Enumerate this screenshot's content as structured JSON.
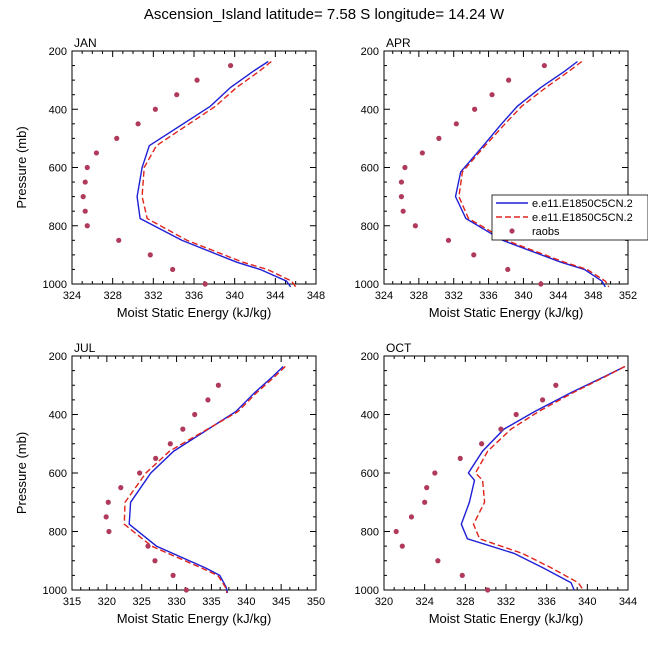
{
  "title": "Ascension_Island  latitude= 7.58 S longitude= 14.24 W",
  "legend": {
    "entries": [
      {
        "label": "e.e11.E1850C5CN.2",
        "color": "#1f1fd6",
        "style": "solid"
      },
      {
        "label": "e.e11.E1850C5CN.2",
        "color": "#e0241b",
        "style": "dashed"
      },
      {
        "label": "raobs",
        "color": "#b03a5b",
        "style": "marker"
      }
    ]
  },
  "chart_data": [
    {
      "type": "line",
      "panel": "JAN",
      "xlabel": "Moist Static Energy (kJ/kg)",
      "ylabel": "Pressure (mb)",
      "xlim": [
        324,
        348
      ],
      "ylim": [
        1000,
        200
      ],
      "xticks": [
        "324",
        "328",
        "332",
        "336",
        "340",
        "344",
        "348"
      ],
      "yticks": [
        "200",
        "400",
        "600",
        "800",
        "1000"
      ],
      "pressure": [
        236,
        270,
        325,
        390,
        525,
        600,
        700,
        775,
        850,
        925,
        950,
        990,
        1010
      ],
      "series": [
        {
          "name": "e.e11.E1850C5CN.2",
          "values": [
            343.3,
            341.8,
            339.6,
            337.6,
            331.6,
            330.9,
            330.4,
            330.7,
            334.8,
            340.2,
            342.5,
            345.1,
            345.5
          ]
        },
        {
          "name": "e.e11.E1850C5CN.2",
          "values": [
            343.6,
            342.4,
            340.2,
            338.1,
            332.3,
            331.1,
            330.9,
            331.4,
            335.3,
            340.8,
            343.2,
            345.6,
            346.0
          ]
        }
      ],
      "raobs": {
        "pressure": [
          250,
          300,
          350,
          400,
          450,
          500,
          550,
          600,
          650,
          700,
          750,
          800,
          850,
          900,
          950,
          1000
        ],
        "values": [
          339.6,
          336.3,
          334.3,
          332.2,
          330.5,
          328.4,
          326.4,
          325.5,
          325.3,
          325.1,
          325.3,
          325.5,
          328.6,
          331.7,
          333.9,
          337.1
        ]
      }
    },
    {
      "type": "line",
      "panel": "APR",
      "xlabel": "Moist Static Energy (kJ/kg)",
      "ylabel": "",
      "xlim": [
        324,
        352
      ],
      "ylim": [
        1000,
        200
      ],
      "xticks": [
        "324",
        "328",
        "332",
        "336",
        "340",
        "344",
        "348",
        "352"
      ],
      "yticks": [
        "200",
        "400",
        "600",
        "800",
        "1000"
      ],
      "pressure": [
        236,
        270,
        325,
        390,
        450,
        525,
        615,
        700,
        775,
        850,
        925,
        950,
        990,
        1010
      ],
      "series": [
        {
          "name": "e.e11.E1850C5CN.2",
          "values": [
            346.2,
            344.7,
            342.0,
            339.3,
            337.5,
            335.4,
            332.8,
            332.2,
            333.4,
            337.6,
            344.3,
            347.0,
            349.0,
            349.4
          ]
        },
        {
          "name": "e.e11.E1850C5CN.2",
          "values": [
            346.7,
            345.2,
            342.6,
            339.8,
            337.9,
            335.6,
            333.0,
            332.6,
            333.7,
            338.0,
            344.7,
            347.3,
            349.4,
            349.8
          ]
        }
      ],
      "raobs": {
        "pressure": [
          250,
          300,
          350,
          400,
          450,
          500,
          550,
          600,
          650,
          700,
          750,
          800,
          850,
          900,
          950,
          1000
        ],
        "values": [
          342.4,
          338.3,
          336.4,
          334.4,
          332.3,
          330.3,
          328.4,
          326.4,
          326.0,
          326.0,
          326.2,
          327.6,
          331.4,
          334.3,
          338.2,
          342.0
        ]
      }
    },
    {
      "type": "line",
      "panel": "JUL",
      "xlabel": "Moist Static Energy (kJ/kg)",
      "ylabel": "Pressure (mb)",
      "xlim": [
        315,
        350
      ],
      "ylim": [
        1000,
        200
      ],
      "xticks": [
        "315",
        "320",
        "325",
        "330",
        "335",
        "340",
        "345",
        "350"
      ],
      "yticks": [
        "200",
        "400",
        "600",
        "800",
        "1000"
      ],
      "pressure": [
        236,
        270,
        325,
        390,
        525,
        600,
        700,
        775,
        850,
        925,
        950,
        990,
        1010
      ],
      "series": [
        {
          "name": "e.e11.E1850C5CN.2",
          "values": [
            345.3,
            343.8,
            341.2,
            338.5,
            329.6,
            326.3,
            323.4,
            323.2,
            327.1,
            334.2,
            336.2,
            337.1,
            337.3
          ]
        },
        {
          "name": "e.e11.E1850C5CN.2",
          "values": [
            345.6,
            344.1,
            341.5,
            338.8,
            329.0,
            325.6,
            322.6,
            322.5,
            326.4,
            333.6,
            335.9,
            337.0,
            337.2
          ]
        }
      ],
      "raobs": {
        "pressure": [
          300,
          350,
          400,
          450,
          500,
          550,
          600,
          650,
          700,
          750,
          800,
          850,
          900,
          950,
          1000
        ],
        "values": [
          336.0,
          334.5,
          332.6,
          330.9,
          329.1,
          327.0,
          324.7,
          322.0,
          320.2,
          319.9,
          320.3,
          325.9,
          326.9,
          329.5,
          331.4
        ]
      }
    },
    {
      "type": "line",
      "panel": "OCT",
      "xlabel": "Moist Static Energy (kJ/kg)",
      "ylabel": "",
      "xlim": [
        320,
        344
      ],
      "ylim": [
        1000,
        200
      ],
      "xticks": [
        "320",
        "324",
        "328",
        "332",
        "336",
        "340",
        "344"
      ],
      "yticks": [
        "200",
        "400",
        "600",
        "800",
        "1000"
      ],
      "pressure": [
        236,
        270,
        325,
        390,
        450,
        525,
        600,
        625,
        700,
        775,
        825,
        875,
        925,
        975,
        1000
      ],
      "series": [
        {
          "name": "e.e11.E1850C5CN.2",
          "values": [
            343.7,
            341.7,
            338.4,
            334.8,
            331.8,
            329.7,
            328.3,
            328.9,
            328.4,
            327.6,
            328.2,
            332.8,
            335.7,
            338.4,
            338.7
          ]
        },
        {
          "name": "e.e11.E1850C5CN.2",
          "values": [
            343.7,
            341.8,
            338.6,
            335.2,
            332.5,
            330.2,
            329.0,
            329.7,
            329.9,
            328.8,
            329.4,
            333.6,
            336.5,
            339.1,
            339.6
          ]
        }
      ],
      "raobs": {
        "pressure": [
          300,
          350,
          400,
          450,
          500,
          550,
          600,
          650,
          700,
          750,
          800,
          850,
          900,
          950,
          1000
        ],
        "values": [
          336.9,
          335.6,
          333.0,
          331.5,
          329.6,
          327.5,
          325.0,
          324.2,
          324.0,
          322.7,
          321.2,
          321.8,
          325.3,
          327.7,
          330.2
        ]
      }
    }
  ]
}
